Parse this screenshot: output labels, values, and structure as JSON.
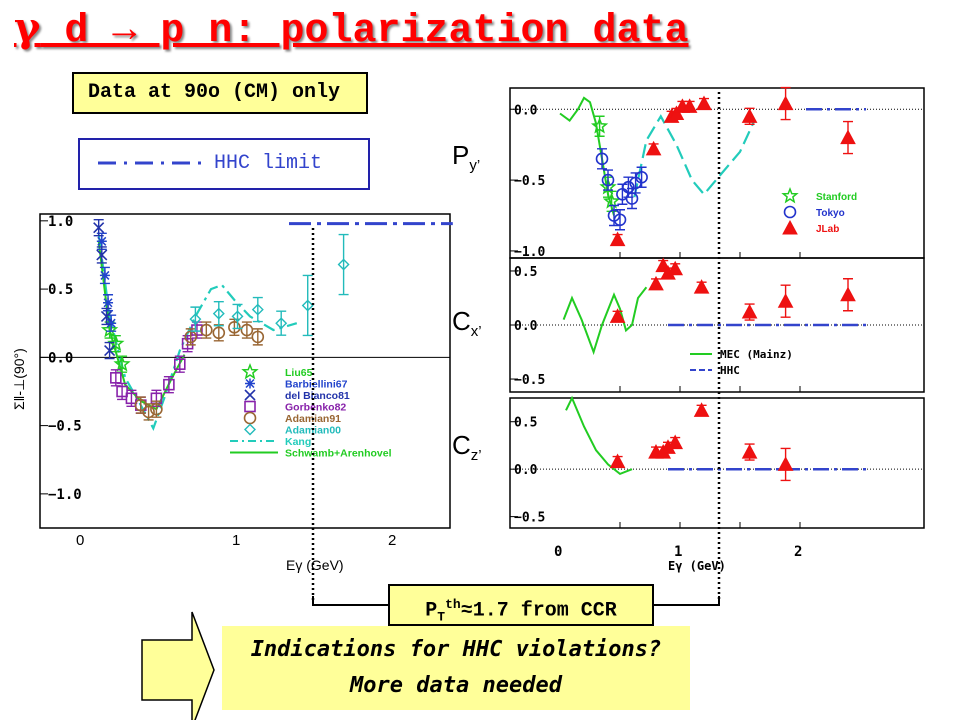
{
  "title": {
    "gamma": "γ",
    "rest": " d → p n: polarization data"
  },
  "note_90": "Data at 90o (CM) only",
  "hhc_legend_label": "HHC limit",
  "pt_box": "PTth≈1.7 from CCR",
  "conclusion": {
    "line1": "Indications for HHC violations?",
    "line2": "More data needed"
  },
  "observables": {
    "py": "Py’",
    "cx": "Cx’",
    "cz": "Cz’"
  },
  "colors": {
    "title": "#ff0000",
    "box": "#ffff99",
    "hhc": "#3344cc"
  },
  "chart_data": [
    {
      "id": "sigma",
      "type": "scatter",
      "ylabel": "Σ‖-⊥(90°)",
      "xlabel": "Eγ (GeV)",
      "xlim": [
        0,
        2
      ],
      "ylim": [
        -1.25,
        1.05
      ],
      "xticks": [
        "0",
        "1",
        "2"
      ],
      "yticks": [
        "1.0",
        "0.5",
        "0.0",
        "−0.5",
        "−1.0"
      ],
      "legend": [
        "Liu65",
        "Barbiellini67",
        "del Bianco81",
        "Gorbenko82",
        "Adamian91",
        "Adamian00",
        "Kang",
        "Schwamb+Arenhovel"
      ],
      "series": [
        {
          "name": "Liu65",
          "points": [
            [
              0.1,
              0.2
            ],
            [
              0.14,
              0.1
            ],
            [
              0.18,
              -0.05
            ]
          ]
        },
        {
          "name": "Barbiellini67",
          "points": [
            [
              0.05,
              0.85
            ],
            [
              0.07,
              0.6
            ],
            [
              0.09,
              0.4
            ],
            [
              0.11,
              0.25
            ]
          ]
        },
        {
          "name": "del Bianco81",
          "points": [
            [
              0.03,
              0.95
            ],
            [
              0.05,
              0.75
            ],
            [
              0.08,
              0.3
            ],
            [
              0.1,
              0.05
            ]
          ]
        },
        {
          "name": "Gorbenko82",
          "points": [
            [
              0.14,
              -0.15
            ],
            [
              0.18,
              -0.25
            ],
            [
              0.24,
              -0.3
            ],
            [
              0.3,
              -0.35
            ],
            [
              0.4,
              -0.3
            ],
            [
              0.48,
              -0.2
            ],
            [
              0.55,
              -0.05
            ],
            [
              0.6,
              0.1
            ],
            [
              0.66,
              0.2
            ]
          ]
        },
        {
          "name": "Adamian91",
          "points": [
            [
              0.3,
              -0.35
            ],
            [
              0.35,
              -0.4
            ],
            [
              0.4,
              -0.38
            ],
            [
              0.62,
              0.15
            ],
            [
              0.72,
              0.2
            ],
            [
              0.8,
              0.18
            ],
            [
              0.9,
              0.22
            ],
            [
              0.98,
              0.2
            ],
            [
              1.05,
              0.15
            ]
          ]
        },
        {
          "name": "Adamian00",
          "points": [
            [
              0.65,
              0.28
            ],
            [
              0.8,
              0.32
            ],
            [
              0.92,
              0.3
            ],
            [
              1.05,
              0.35
            ],
            [
              1.2,
              0.25
            ],
            [
              1.37,
              0.38
            ],
            [
              1.6,
              0.68
            ]
          ]
        }
      ],
      "curves": {
        "Kang": [
          [
            0.03,
            0.9
          ],
          [
            0.1,
            0.3
          ],
          [
            0.2,
            -0.15
          ],
          [
            0.3,
            -0.35
          ],
          [
            0.38,
            -0.52
          ],
          [
            0.45,
            -0.3
          ],
          [
            0.55,
            0.05
          ],
          [
            0.65,
            0.3
          ],
          [
            0.75,
            0.5
          ],
          [
            0.82,
            0.53
          ],
          [
            0.9,
            0.42
          ],
          [
            1.0,
            0.3
          ],
          [
            1.15,
            0.2
          ],
          [
            1.3,
            0.25
          ]
        ],
        "Schwamb+Arenhovel": [
          [
            0.03,
            0.85
          ],
          [
            0.1,
            0.2
          ],
          [
            0.2,
            -0.2
          ],
          [
            0.3,
            -0.32
          ],
          [
            0.4,
            -0.38
          ],
          [
            0.5,
            -0.15
          ],
          [
            0.58,
            0.02
          ]
        ],
        "HHC": [
          [
            1.25,
            0.98
          ],
          [
            2.3,
            0.98
          ]
        ]
      }
    },
    {
      "id": "py",
      "type": "scatter",
      "ylim": [
        -1.05,
        0.15
      ],
      "yticks": [
        "0.0",
        "−0.5",
        "−1.0"
      ],
      "legend": [
        "Stanford",
        "Tokyo",
        "JLab"
      ],
      "series": [
        {
          "name": "Stanford",
          "points": [
            [
              0.33,
              -0.12
            ],
            [
              0.4,
              -0.55
            ],
            [
              0.43,
              -0.65
            ]
          ]
        },
        {
          "name": "Tokyo",
          "points": [
            [
              0.35,
              -0.35
            ],
            [
              0.4,
              -0.5
            ],
            [
              0.45,
              -0.75
            ],
            [
              0.5,
              -0.78
            ],
            [
              0.52,
              -0.6
            ],
            [
              0.57,
              -0.55
            ],
            [
              0.6,
              -0.63
            ],
            [
              0.63,
              -0.52
            ],
            [
              0.68,
              -0.48
            ]
          ]
        },
        {
          "name": "JLab",
          "points": [
            [
              0.48,
              -0.92
            ],
            [
              0.78,
              -0.28
            ],
            [
              0.93,
              -0.05
            ],
            [
              0.97,
              -0.03
            ],
            [
              1.02,
              0.02
            ],
            [
              1.08,
              0.02
            ],
            [
              1.2,
              0.04
            ],
            [
              1.58,
              -0.05
            ],
            [
              1.88,
              0.04
            ],
            [
              2.4,
              -0.2
            ]
          ]
        }
      ],
      "curves": {
        "MEC": [
          [
            0.0,
            -0.03
          ],
          [
            0.08,
            -0.08
          ],
          [
            0.15,
            0.0
          ],
          [
            0.2,
            0.08
          ],
          [
            0.25,
            0.05
          ],
          [
            0.3,
            -0.1
          ],
          [
            0.35,
            -0.35
          ],
          [
            0.4,
            -0.6
          ],
          [
            0.45,
            -0.75
          ]
        ],
        "MEC2": [
          [
            0.62,
            -0.62
          ],
          [
            0.72,
            -0.22
          ],
          [
            0.84,
            -0.05
          ],
          [
            0.97,
            -0.25
          ],
          [
            1.1,
            -0.5
          ],
          [
            1.2,
            -0.6
          ],
          [
            1.35,
            -0.45
          ],
          [
            1.5,
            -0.3
          ],
          [
            1.62,
            -0.08
          ]
        ],
        "HHC": [
          [
            2.05,
            0.0
          ],
          [
            2.55,
            0.0
          ]
        ]
      }
    },
    {
      "id": "cx",
      "type": "scatter",
      "ylim": [
        -0.62,
        0.62
      ],
      "yticks": [
        "0.5",
        "0.0",
        "−0.5"
      ],
      "legend": [
        "MEC  (Mainz)",
        "HHC"
      ],
      "series": [
        {
          "name": "JLab",
          "points": [
            [
              0.48,
              0.08
            ],
            [
              0.8,
              0.38
            ],
            [
              0.86,
              0.55
            ],
            [
              0.9,
              0.48
            ],
            [
              0.96,
              0.52
            ],
            [
              1.18,
              0.35
            ],
            [
              1.58,
              0.12
            ],
            [
              1.88,
              0.22
            ],
            [
              2.4,
              0.28
            ]
          ]
        }
      ],
      "curves": {
        "MEC": [
          [
            0.03,
            0.05
          ],
          [
            0.1,
            0.25
          ],
          [
            0.18,
            0.05
          ],
          [
            0.28,
            -0.25
          ],
          [
            0.35,
            0.0
          ],
          [
            0.45,
            0.28
          ],
          [
            0.5,
            0.15
          ],
          [
            0.55,
            -0.05
          ],
          [
            0.6,
            0.0
          ],
          [
            0.65,
            0.25
          ],
          [
            0.72,
            0.35
          ]
        ],
        "HHC": [
          [
            0.9,
            0.0
          ],
          [
            2.55,
            0.0
          ]
        ]
      }
    },
    {
      "id": "cz",
      "type": "scatter",
      "ylim": [
        -0.62,
        0.75
      ],
      "yticks": [
        "0.5",
        "0.0",
        "−0.5"
      ],
      "series": [
        {
          "name": "JLab",
          "points": [
            [
              0.48,
              0.08
            ],
            [
              0.8,
              0.18
            ],
            [
              0.86,
              0.18
            ],
            [
              0.9,
              0.23
            ],
            [
              0.96,
              0.28
            ],
            [
              1.18,
              0.62
            ],
            [
              1.58,
              0.18
            ],
            [
              1.88,
              0.05
            ]
          ]
        }
      ],
      "curves": {
        "MEC": [
          [
            0.05,
            0.62
          ],
          [
            0.1,
            0.75
          ],
          [
            0.2,
            0.45
          ],
          [
            0.3,
            0.2
          ],
          [
            0.4,
            0.05
          ],
          [
            0.5,
            -0.05
          ],
          [
            0.6,
            0.0
          ]
        ],
        "HHC": [
          [
            0.9,
            0.0
          ],
          [
            2.55,
            0.0
          ]
        ]
      },
      "xticks": [
        "0",
        "1",
        "2"
      ],
      "xlabel": "Eγ (GeV)"
    }
  ]
}
